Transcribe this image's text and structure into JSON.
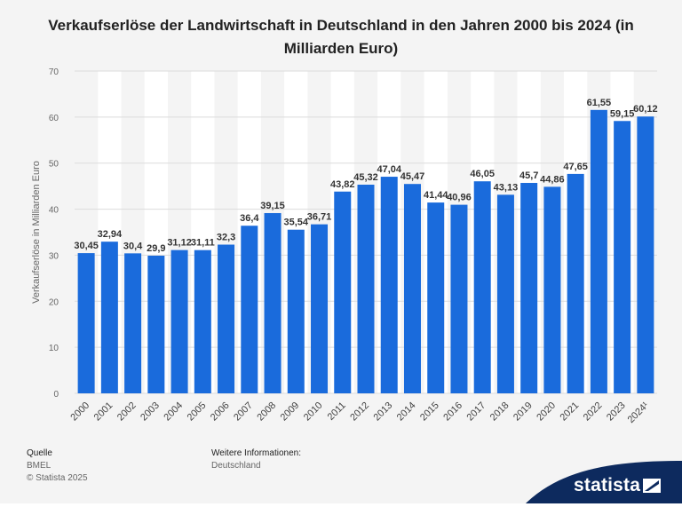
{
  "title": "Verkaufserlöse der Landwirtschaft in Deutschland in den Jahren 2000 bis 2024 (in Milliarden Euro)",
  "chart_data": {
    "type": "bar",
    "title": "Verkaufserlöse der Landwirtschaft in Deutschland in den Jahren 2000 bis 2024 (in Milliarden Euro)",
    "xlabel": "",
    "ylabel": "Verkaufserlöse in Milliarden Euro",
    "ylim": [
      0,
      70
    ],
    "yticks": [
      0,
      10,
      20,
      30,
      40,
      50,
      60,
      70
    ],
    "categories": [
      "2000",
      "2001",
      "2002",
      "2003",
      "2004",
      "2005",
      "2006",
      "2007",
      "2008",
      "2009",
      "2010",
      "2011",
      "2012",
      "2013",
      "2014",
      "2015",
      "2016",
      "2017",
      "2018",
      "2019",
      "2020",
      "2021",
      "2022",
      "2023",
      "2024¹"
    ],
    "values": [
      30.45,
      32.94,
      30.4,
      29.9,
      31.12,
      31.11,
      32.3,
      36.4,
      39.15,
      35.54,
      36.71,
      43.82,
      45.32,
      47.04,
      45.47,
      41.44,
      40.96,
      46.05,
      43.13,
      45.7,
      44.86,
      47.65,
      61.55,
      59.15,
      60.12
    ],
    "value_labels": [
      "30,45",
      "32,94",
      "30,4",
      "29,9",
      "31,12",
      "31,11",
      "32,3",
      "36,4",
      "39,15",
      "35,54",
      "36,71",
      "43,82",
      "45,32",
      "47,04",
      "45,47",
      "41,44",
      "40,96",
      "46,05",
      "43,13",
      "45,7",
      "44,86",
      "47,65",
      "61,55",
      "59,15",
      "60,12"
    ],
    "bar_color": "#1a6bdc",
    "grid": true
  },
  "footer": {
    "source_label": "Quelle",
    "source_value": "BMEL",
    "copyright": "© Statista 2025",
    "info_label": "Weitere Informationen:",
    "info_value": "Deutschland"
  },
  "brand": {
    "name": "statista",
    "color": "#0d2a5e"
  }
}
